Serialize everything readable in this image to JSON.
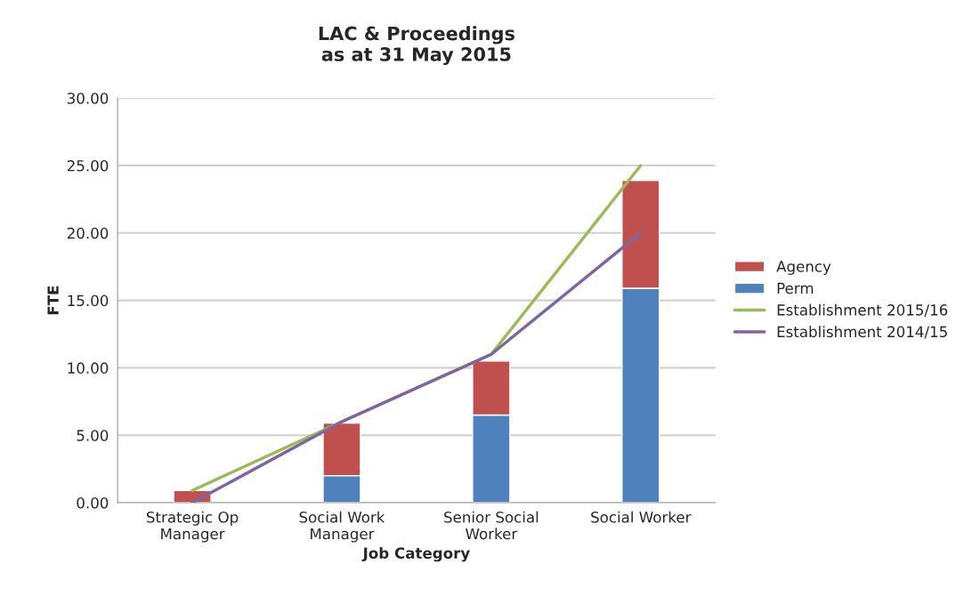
{
  "chart_data": {
    "type": "bar",
    "stacked": true,
    "title": "LAC & Proceedings\nas at 31 May 2015",
    "xlabel": "Job Category",
    "ylabel": "FTE",
    "categories": [
      "Strategic Op\nManager",
      "Social Work\nManager",
      "Senior Social\nWorker",
      "Social Worker"
    ],
    "series": [
      {
        "name": "Perm",
        "color": "#4f81bd",
        "values": [
          0,
          2.0,
          6.5,
          15.9
        ]
      },
      {
        "name": "Agency",
        "color": "#c0504d",
        "values": [
          0.9,
          3.9,
          4.0,
          8.0
        ]
      },
      {
        "name": "Establishment 2015/16",
        "type": "line",
        "color": "#9bbb59",
        "values": [
          0.9,
          6.0,
          11.0,
          25.0
        ]
      },
      {
        "name": "Establishment 2014/15",
        "type": "line",
        "color": "#8064a2",
        "values": [
          0,
          6.0,
          11.0,
          20.0
        ]
      }
    ],
    "ylim": [
      0,
      30
    ],
    "yticks": [
      {
        "value": 0,
        "label": "0.00"
      },
      {
        "value": 5,
        "label": "5.00"
      },
      {
        "value": 10,
        "label": "10.00"
      },
      {
        "value": 15,
        "label": "15.00"
      },
      {
        "value": 20,
        "label": "20.00"
      },
      {
        "value": 25,
        "label": "25.00"
      },
      {
        "value": 30,
        "label": "30.00"
      }
    ],
    "grid": "y",
    "legend": "right"
  }
}
